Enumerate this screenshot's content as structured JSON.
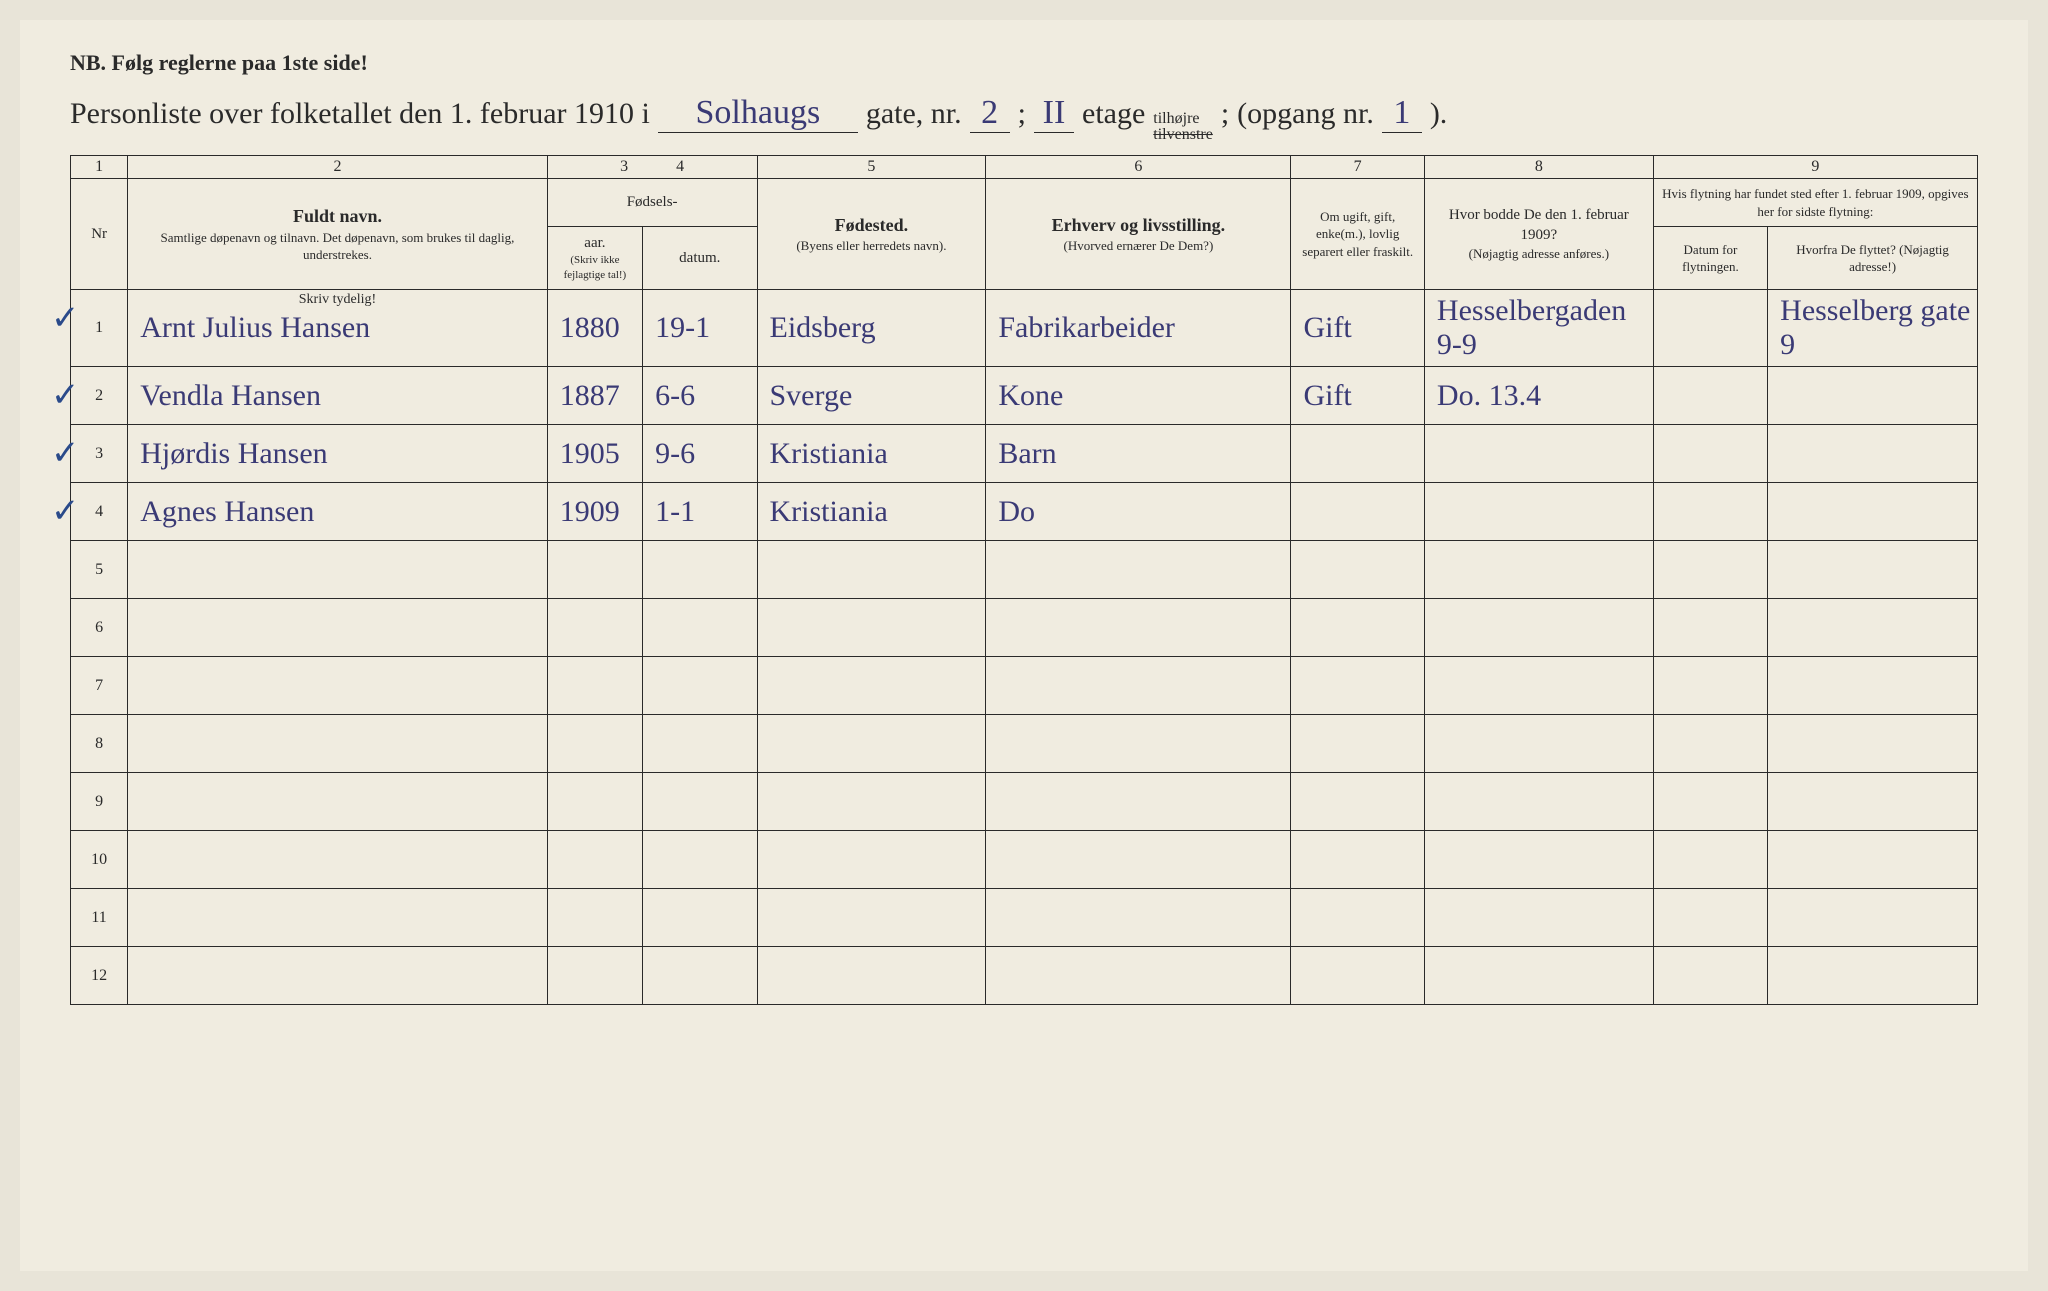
{
  "header": {
    "nb": "NB.  Følg reglerne paa 1ste side!",
    "title_prefix": "Personliste over folketallet den 1. februar 1910 i",
    "street": "Solhaugs",
    "gate_nr_label": "gate, nr.",
    "gate_nr": "2",
    "etage_label": "etage",
    "etage": "II",
    "tilhojre": "tilhøjre",
    "tilvenstre": "tilvenstre",
    "opgang_label": "(opgang nr.",
    "opgang_nr": "1",
    "opgang_close": ")."
  },
  "columns": {
    "nums": [
      "1",
      "2",
      "3",
      "4",
      "5",
      "6",
      "7",
      "8",
      "9"
    ],
    "nr": "Nr",
    "name_bold": "Fuldt navn.",
    "name_sub": "Samtlige døpenavn og tilnavn. Det døpenavn, som brukes til daglig, understrekes.",
    "fodsels": "Fødsels-",
    "aar": "aar.",
    "datum": "datum.",
    "aar_sub": "(Skriv ikke fejlagtige tal!)",
    "fodested_bold": "Fødested.",
    "fodested_sub": "(Byens eller herredets navn).",
    "erhverv_bold": "Erhverv og livsstilling.",
    "erhverv_sub": "(Hvorved ernærer De Dem?)",
    "gift": "Om ugift, gift, enke(m.), lovlig separert eller fraskilt.",
    "bodde_bold": "Hvor bodde De den 1. februar 1909?",
    "bodde_sub": "(Nøjagtig adresse anføres.)",
    "flytning_top": "Hvis flytning har fundet sted efter 1. februar 1909, opgives her for sidste flytning:",
    "flytning_datum": "Datum for flytningen.",
    "flytning_hvorfra": "Hvorfra De flyttet? (Nøjagtig adresse!)",
    "skriv_tydelig": "Skriv tydelig!"
  },
  "rows": [
    {
      "nr": "1",
      "check": "✓",
      "name": "Arnt Julius Hansen",
      "aar": "1880",
      "datum": "19-1",
      "fodested": "Eidsberg",
      "erhverv": "Fabrikarbeider",
      "gift": "Gift",
      "bodde": "Hesselbergaden 9-9",
      "flyt_hvorfra": "Hesselberg gate 9"
    },
    {
      "nr": "2",
      "check": "✓",
      "name": "Vendla Hansen",
      "aar": "1887",
      "datum": "6-6",
      "fodested": "Sverge",
      "erhverv": "Kone",
      "gift": "Gift",
      "bodde": "Do. 13.4",
      "flyt_hvorfra": ""
    },
    {
      "nr": "3",
      "check": "✓",
      "name": "Hjørdis Hansen",
      "aar": "1905",
      "datum": "9-6",
      "fodested": "Kristiania",
      "erhverv": "Barn",
      "gift": "",
      "bodde": "",
      "flyt_hvorfra": ""
    },
    {
      "nr": "4",
      "check": "✓",
      "name": "Agnes Hansen",
      "aar": "1909",
      "datum": "1-1",
      "fodested": "Kristiania",
      "erhverv": "Do",
      "gift": "",
      "bodde": "",
      "flyt_hvorfra": ""
    }
  ],
  "empty_rows": [
    "5",
    "6",
    "7",
    "8",
    "9",
    "10",
    "11",
    "12"
  ]
}
